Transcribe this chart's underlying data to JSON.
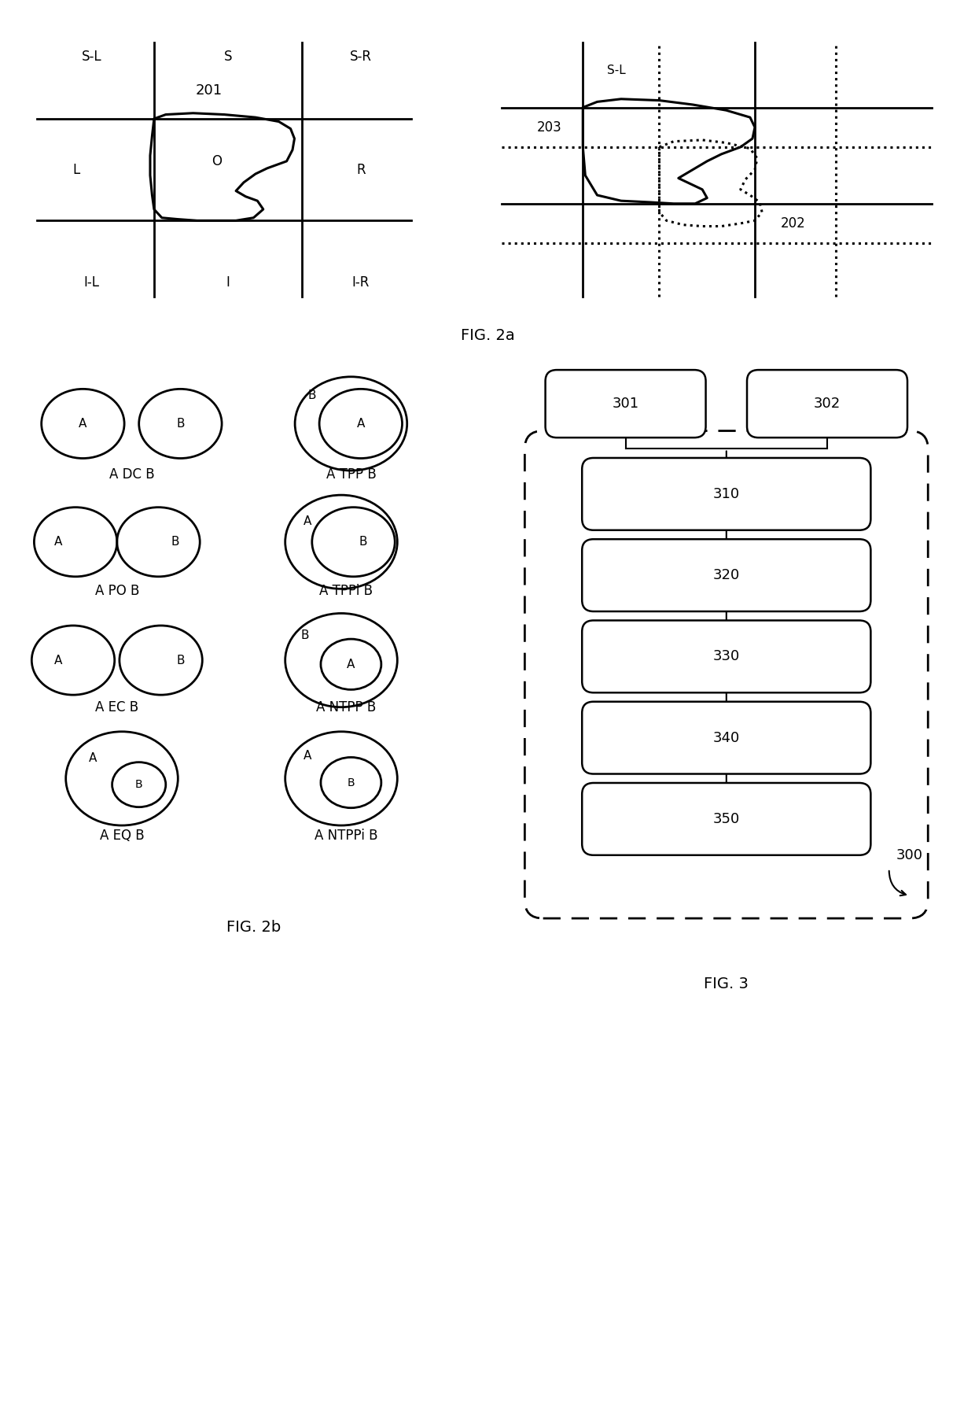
{
  "bg_color": "#ffffff",
  "fig_width": 12.4,
  "fig_height": 17.97,
  "fig2a_caption": "FIG. 2a",
  "fig2b_caption": "FIG. 2b",
  "fig3_caption": "FIG. 3",
  "flow_boxes": [
    "310",
    "320",
    "330",
    "340",
    "350"
  ],
  "flow_top": [
    "301",
    "302"
  ],
  "flow_label": "300"
}
